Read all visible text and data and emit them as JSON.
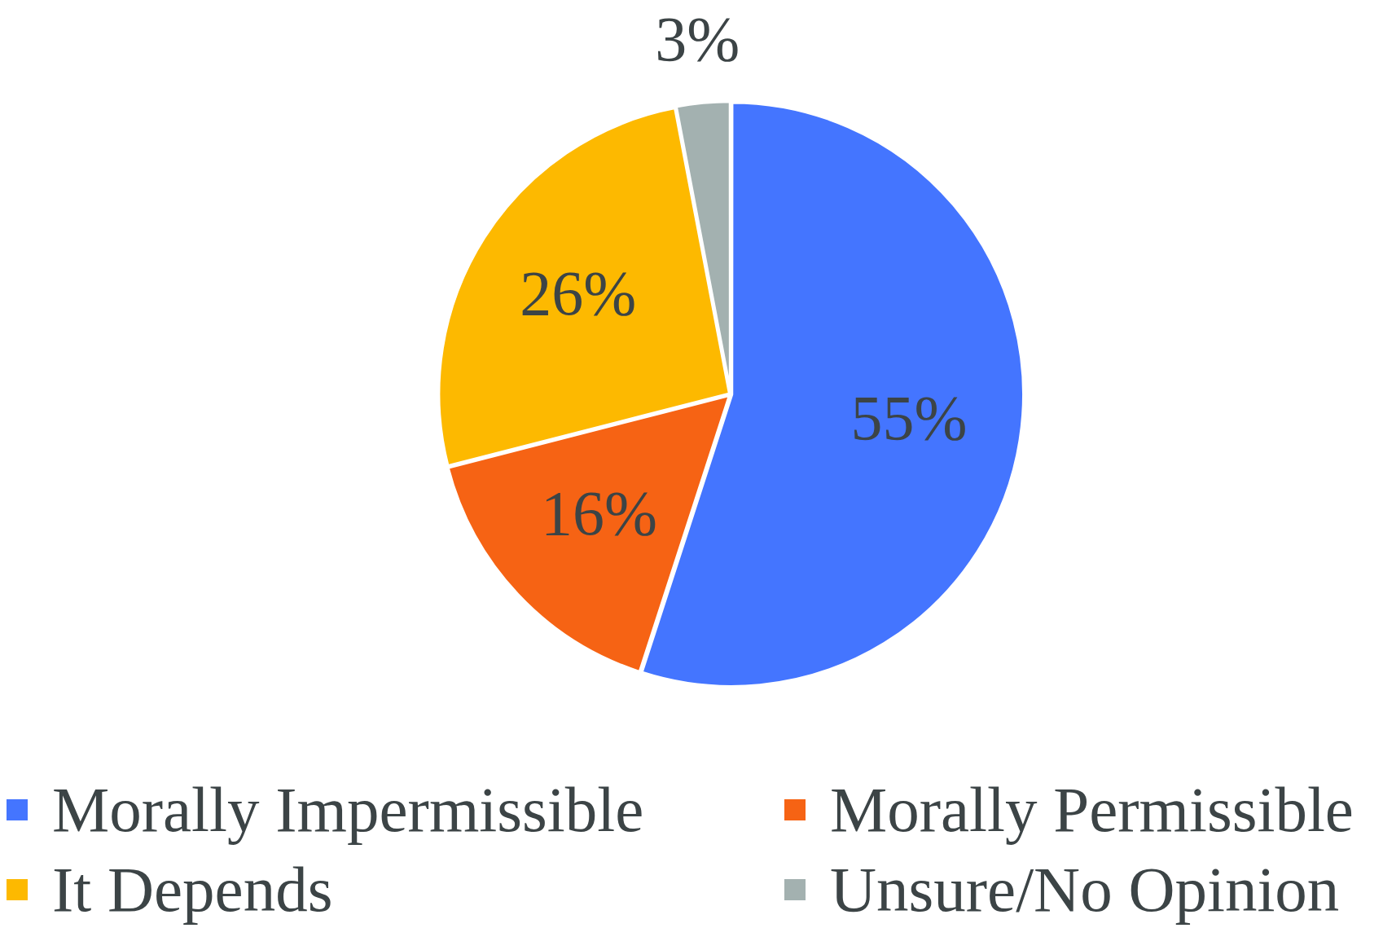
{
  "chart_data": {
    "type": "pie",
    "categories": [
      "Morally Impermissible",
      "Morally Permissible",
      "It Depends",
      "Unsure/No Opinion"
    ],
    "values": [
      55,
      16,
      26,
      3
    ],
    "colors": [
      "#4475ff",
      "#f66314",
      "#fdb900",
      "#a3b1b0"
    ],
    "value_labels": [
      "55%",
      "16%",
      "26%",
      "3%"
    ],
    "legend": "bottom"
  }
}
